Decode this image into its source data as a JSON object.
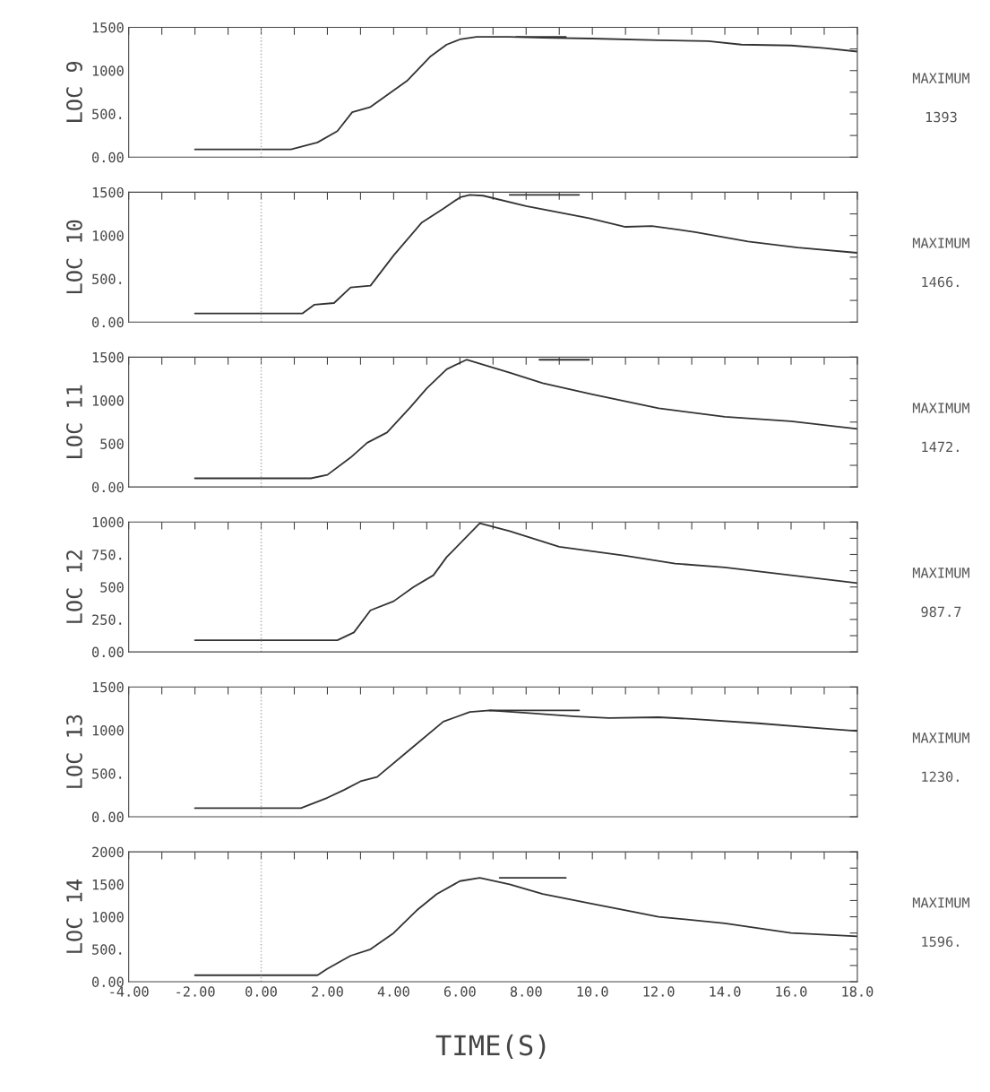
{
  "chart_data": [
    {
      "type": "line",
      "ylabel": "LOC 9",
      "xlim": [
        -4,
        18
      ],
      "ylim": [
        0,
        1500
      ],
      "tick_labels": "y",
      "grid": false,
      "line_style": "solid",
      "marker": "none",
      "xticks": [
        {
          "value": -4,
          "label": null
        },
        {
          "value": -3,
          "label": null
        },
        {
          "value": -2,
          "label": null
        },
        {
          "value": -1,
          "label": null
        },
        {
          "value": 0,
          "label": null
        },
        {
          "value": 1,
          "label": null
        },
        {
          "value": 2,
          "label": null
        },
        {
          "value": 3,
          "label": null
        },
        {
          "value": 4,
          "label": null
        },
        {
          "value": 5,
          "label": null
        },
        {
          "value": 6,
          "label": null
        },
        {
          "value": 7,
          "label": null
        },
        {
          "value": 8,
          "label": null
        },
        {
          "value": 9,
          "label": null
        },
        {
          "value": 10,
          "label": null
        },
        {
          "value": 11,
          "label": null
        },
        {
          "value": 12,
          "label": null
        },
        {
          "value": 13,
          "label": null
        },
        {
          "value": 14,
          "label": null
        },
        {
          "value": 15,
          "label": null
        },
        {
          "value": 16,
          "label": null
        },
        {
          "value": 17,
          "label": null
        },
        {
          "value": 18,
          "label": null
        }
      ],
      "yticks": [
        {
          "value": 0,
          "label": "0.00"
        },
        {
          "value": 250,
          "label": null
        },
        {
          "value": 500,
          "label": "500."
        },
        {
          "value": 750,
          "label": null
        },
        {
          "value": 1000,
          "label": "1000"
        },
        {
          "value": 1250,
          "label": null
        },
        {
          "value": 1500,
          "label": "1500"
        }
      ],
      "ref_lines": [
        {
          "axis": "x",
          "value": 0,
          "color": "#aaaaaa",
          "line_style": "dotted"
        }
      ],
      "series": [
        {
          "color": "#333333",
          "x": [
            -2,
            0.9,
            1.7,
            2.3,
            2.75,
            3.3,
            4.4,
            5.1,
            5.6,
            6.0,
            6.5,
            7.5,
            8.5,
            10,
            12,
            13.5,
            14.5,
            16,
            17,
            18
          ],
          "values": [
            90,
            90,
            170,
            300,
            520,
            580,
            880,
            1160,
            1300,
            1360,
            1390,
            1390,
            1380,
            1370,
            1350,
            1340,
            1300,
            1290,
            1260,
            1220
          ]
        },
        {
          "color": "#333333",
          "x": [
            7.7,
            9.2
          ],
          "values": [
            1390,
            1390
          ]
        }
      ],
      "annotations": [
        "MAXIMUM",
        "1393"
      ]
    },
    {
      "type": "line",
      "ylabel": "LOC 10",
      "xlim": [
        -4,
        18
      ],
      "ylim": [
        0,
        1500
      ],
      "tick_labels": "y",
      "grid": false,
      "line_style": "solid",
      "marker": "none",
      "xticks": [
        {
          "value": -4,
          "label": null
        },
        {
          "value": -3,
          "label": null
        },
        {
          "value": -2,
          "label": null
        },
        {
          "value": -1,
          "label": null
        },
        {
          "value": 0,
          "label": null
        },
        {
          "value": 1,
          "label": null
        },
        {
          "value": 2,
          "label": null
        },
        {
          "value": 3,
          "label": null
        },
        {
          "value": 4,
          "label": null
        },
        {
          "value": 5,
          "label": null
        },
        {
          "value": 6,
          "label": null
        },
        {
          "value": 7,
          "label": null
        },
        {
          "value": 8,
          "label": null
        },
        {
          "value": 9,
          "label": null
        },
        {
          "value": 10,
          "label": null
        },
        {
          "value": 11,
          "label": null
        },
        {
          "value": 12,
          "label": null
        },
        {
          "value": 13,
          "label": null
        },
        {
          "value": 14,
          "label": null
        },
        {
          "value": 15,
          "label": null
        },
        {
          "value": 16,
          "label": null
        },
        {
          "value": 17,
          "label": null
        },
        {
          "value": 18,
          "label": null
        }
      ],
      "yticks": [
        {
          "value": 0,
          "label": "0.00"
        },
        {
          "value": 250,
          "label": null
        },
        {
          "value": 500,
          "label": "500."
        },
        {
          "value": 750,
          "label": null
        },
        {
          "value": 1000,
          "label": "1000"
        },
        {
          "value": 1250,
          "label": null
        },
        {
          "value": 1500,
          "label": "1500"
        }
      ],
      "ref_lines": [
        {
          "axis": "x",
          "value": 0,
          "color": "#aaaaaa",
          "line_style": "dotted"
        }
      ],
      "series": [
        {
          "color": "#333333",
          "x": [
            -2,
            1.25,
            1.6,
            2.2,
            2.7,
            3.3,
            4.0,
            4.85,
            5.5,
            6.0,
            6.3,
            6.7,
            8.0,
            9.9,
            11,
            11.8,
            13.1,
            14.7,
            16.2,
            18
          ],
          "values": [
            100,
            100,
            200,
            220,
            400,
            420,
            770,
            1150,
            1310,
            1440,
            1470,
            1460,
            1340,
            1200,
            1100,
            1110,
            1040,
            930,
            860,
            800
          ]
        },
        {
          "color": "#333333",
          "x": [
            7.5,
            9.6
          ],
          "values": [
            1470,
            1470
          ]
        }
      ],
      "annotations": [
        "MAXIMUM",
        "1466."
      ]
    },
    {
      "type": "line",
      "ylabel": "LOC 11",
      "xlim": [
        -4,
        18
      ],
      "ylim": [
        0,
        1500
      ],
      "tick_labels": "y",
      "grid": false,
      "line_style": "solid",
      "marker": "none",
      "xticks": [
        {
          "value": -4,
          "label": null
        },
        {
          "value": -3,
          "label": null
        },
        {
          "value": -2,
          "label": null
        },
        {
          "value": -1,
          "label": null
        },
        {
          "value": 0,
          "label": null
        },
        {
          "value": 1,
          "label": null
        },
        {
          "value": 2,
          "label": null
        },
        {
          "value": 3,
          "label": null
        },
        {
          "value": 4,
          "label": null
        },
        {
          "value": 5,
          "label": null
        },
        {
          "value": 6,
          "label": null
        },
        {
          "value": 7,
          "label": null
        },
        {
          "value": 8,
          "label": null
        },
        {
          "value": 9,
          "label": null
        },
        {
          "value": 10,
          "label": null
        },
        {
          "value": 11,
          "label": null
        },
        {
          "value": 12,
          "label": null
        },
        {
          "value": 13,
          "label": null
        },
        {
          "value": 14,
          "label": null
        },
        {
          "value": 15,
          "label": null
        },
        {
          "value": 16,
          "label": null
        },
        {
          "value": 17,
          "label": null
        },
        {
          "value": 18,
          "label": null
        }
      ],
      "yticks": [
        {
          "value": 0,
          "label": "0.00"
        },
        {
          "value": 250,
          "label": null
        },
        {
          "value": 500,
          "label": "500"
        },
        {
          "value": 750,
          "label": null
        },
        {
          "value": 1000,
          "label": "1000"
        },
        {
          "value": 1250,
          "label": null
        },
        {
          "value": 1500,
          "label": "1500"
        }
      ],
      "ref_lines": [
        {
          "axis": "x",
          "value": 0,
          "color": "#aaaaaa",
          "line_style": "dotted"
        }
      ],
      "series": [
        {
          "color": "#333333",
          "x": [
            -2,
            1.5,
            2.0,
            2.7,
            3.2,
            3.8,
            4.5,
            5.0,
            5.6,
            6.2,
            7.5,
            8.5,
            10,
            12,
            14,
            16,
            18
          ],
          "values": [
            100,
            100,
            140,
            340,
            510,
            630,
            920,
            1140,
            1360,
            1470,
            1320,
            1200,
            1070,
            910,
            810,
            760,
            670
          ]
        },
        {
          "color": "#333333",
          "x": [
            8.4,
            9.9
          ],
          "values": [
            1470,
            1470
          ]
        }
      ],
      "annotations": [
        "MAXIMUM",
        "1472."
      ]
    },
    {
      "type": "line",
      "ylabel": "LOC 12",
      "xlim": [
        -4,
        18
      ],
      "ylim": [
        0,
        1000
      ],
      "tick_labels": "y",
      "grid": false,
      "line_style": "solid",
      "marker": "none",
      "xticks": [
        {
          "value": -4,
          "label": null
        },
        {
          "value": -3,
          "label": null
        },
        {
          "value": -2,
          "label": null
        },
        {
          "value": -1,
          "label": null
        },
        {
          "value": 0,
          "label": null
        },
        {
          "value": 1,
          "label": null
        },
        {
          "value": 2,
          "label": null
        },
        {
          "value": 3,
          "label": null
        },
        {
          "value": 4,
          "label": null
        },
        {
          "value": 5,
          "label": null
        },
        {
          "value": 6,
          "label": null
        },
        {
          "value": 7,
          "label": null
        },
        {
          "value": 8,
          "label": null
        },
        {
          "value": 9,
          "label": null
        },
        {
          "value": 10,
          "label": null
        },
        {
          "value": 11,
          "label": null
        },
        {
          "value": 12,
          "label": null
        },
        {
          "value": 13,
          "label": null
        },
        {
          "value": 14,
          "label": null
        },
        {
          "value": 15,
          "label": null
        },
        {
          "value": 16,
          "label": null
        },
        {
          "value": 17,
          "label": null
        },
        {
          "value": 18,
          "label": null
        }
      ],
      "yticks": [
        {
          "value": 0,
          "label": "0.00"
        },
        {
          "value": 125,
          "label": null
        },
        {
          "value": 250,
          "label": "250."
        },
        {
          "value": 375,
          "label": null
        },
        {
          "value": 500,
          "label": "500"
        },
        {
          "value": 625,
          "label": null
        },
        {
          "value": 750,
          "label": "750."
        },
        {
          "value": 875,
          "label": null
        },
        {
          "value": 1000,
          "label": "1000"
        }
      ],
      "ref_lines": [
        {
          "axis": "x",
          "value": 0,
          "color": "#aaaaaa",
          "line_style": "dotted"
        }
      ],
      "series": [
        {
          "color": "#333333",
          "x": [
            -2,
            2.3,
            2.8,
            3.3,
            4.0,
            4.6,
            5.2,
            5.6,
            6.6,
            7.5,
            9,
            11,
            12.5,
            14,
            16,
            18
          ],
          "values": [
            90,
            90,
            150,
            320,
            390,
            500,
            590,
            730,
            990,
            930,
            810,
            740,
            680,
            650,
            590,
            530
          ]
        }
      ],
      "annotations": [
        "MAXIMUM",
        "987.7"
      ]
    },
    {
      "type": "line",
      "ylabel": "LOC 13",
      "xlim": [
        -4,
        18
      ],
      "ylim": [
        0,
        1500
      ],
      "tick_labels": "y",
      "grid": false,
      "line_style": "solid",
      "marker": "none",
      "xticks": [
        {
          "value": -4,
          "label": null
        },
        {
          "value": -3,
          "label": null
        },
        {
          "value": -2,
          "label": null
        },
        {
          "value": -1,
          "label": null
        },
        {
          "value": 0,
          "label": null
        },
        {
          "value": 1,
          "label": null
        },
        {
          "value": 2,
          "label": null
        },
        {
          "value": 3,
          "label": null
        },
        {
          "value": 4,
          "label": null
        },
        {
          "value": 5,
          "label": null
        },
        {
          "value": 6,
          "label": null
        },
        {
          "value": 7,
          "label": null
        },
        {
          "value": 8,
          "label": null
        },
        {
          "value": 9,
          "label": null
        },
        {
          "value": 10,
          "label": null
        },
        {
          "value": 11,
          "label": null
        },
        {
          "value": 12,
          "label": null
        },
        {
          "value": 13,
          "label": null
        },
        {
          "value": 14,
          "label": null
        },
        {
          "value": 15,
          "label": null
        },
        {
          "value": 16,
          "label": null
        },
        {
          "value": 17,
          "label": null
        },
        {
          "value": 18,
          "label": null
        }
      ],
      "yticks": [
        {
          "value": 0,
          "label": "0.00"
        },
        {
          "value": 250,
          "label": null
        },
        {
          "value": 500,
          "label": "500."
        },
        {
          "value": 750,
          "label": null
        },
        {
          "value": 1000,
          "label": "1000"
        },
        {
          "value": 1250,
          "label": null
        },
        {
          "value": 1500,
          "label": "1500"
        }
      ],
      "ref_lines": [
        {
          "axis": "x",
          "value": 0,
          "color": "#aaaaaa",
          "line_style": "dotted"
        }
      ],
      "series": [
        {
          "color": "#333333",
          "x": [
            -2,
            1.2,
            2.0,
            2.5,
            3.0,
            3.5,
            4.5,
            5.5,
            6.3,
            6.9,
            8,
            9.5,
            10.5,
            12,
            13,
            15,
            17,
            18
          ],
          "values": [
            100,
            100,
            220,
            310,
            410,
            460,
            780,
            1100,
            1210,
            1230,
            1200,
            1160,
            1140,
            1150,
            1130,
            1080,
            1020,
            990
          ]
        },
        {
          "color": "#333333",
          "x": [
            6.9,
            9.6
          ],
          "values": [
            1230,
            1230
          ]
        }
      ],
      "annotations": [
        "MAXIMUM",
        "1230."
      ]
    },
    {
      "type": "line",
      "ylabel": "LOC 14",
      "xlabel": "TIME(S)",
      "xlim": [
        -4,
        18
      ],
      "ylim": [
        0,
        2000
      ],
      "grid": false,
      "line_style": "solid",
      "marker": "none",
      "xticks": [
        {
          "value": -4,
          "label": "-4.00"
        },
        {
          "value": -3,
          "label": null
        },
        {
          "value": -2,
          "label": "-2.00"
        },
        {
          "value": -1,
          "label": null
        },
        {
          "value": 0,
          "label": "0.00"
        },
        {
          "value": 1,
          "label": null
        },
        {
          "value": 2,
          "label": "2.00"
        },
        {
          "value": 3,
          "label": null
        },
        {
          "value": 4,
          "label": "4.00"
        },
        {
          "value": 5,
          "label": null
        },
        {
          "value": 6,
          "label": "6.00"
        },
        {
          "value": 7,
          "label": null
        },
        {
          "value": 8,
          "label": "8.00"
        },
        {
          "value": 9,
          "label": null
        },
        {
          "value": 10,
          "label": "10.0"
        },
        {
          "value": 11,
          "label": null
        },
        {
          "value": 12,
          "label": "12.0"
        },
        {
          "value": 13,
          "label": null
        },
        {
          "value": 14,
          "label": "14.0"
        },
        {
          "value": 15,
          "label": null
        },
        {
          "value": 16,
          "label": "16.0"
        },
        {
          "value": 17,
          "label": null
        },
        {
          "value": 18,
          "label": "18.0"
        }
      ],
      "yticks": [
        {
          "value": 0,
          "label": "0.00"
        },
        {
          "value": 250,
          "label": null
        },
        {
          "value": 500,
          "label": "500."
        },
        {
          "value": 750,
          "label": null
        },
        {
          "value": 1000,
          "label": "1000"
        },
        {
          "value": 1250,
          "label": null
        },
        {
          "value": 1500,
          "label": "1500"
        },
        {
          "value": 1750,
          "label": null
        },
        {
          "value": 2000,
          "label": "2000"
        }
      ],
      "ref_lines": [
        {
          "axis": "x",
          "value": 0,
          "color": "#aaaaaa",
          "line_style": "dotted"
        }
      ],
      "series": [
        {
          "color": "#333333",
          "x": [
            -2,
            1.7,
            2.0,
            2.7,
            3.3,
            4.0,
            4.7,
            5.3,
            6.0,
            6.6,
            7.5,
            8.5,
            10,
            12,
            14,
            16,
            18
          ],
          "values": [
            100,
            100,
            200,
            400,
            500,
            750,
            1100,
            1350,
            1550,
            1600,
            1500,
            1350,
            1200,
            1000,
            900,
            750,
            700
          ]
        },
        {
          "color": "#333333",
          "x": [
            7.2,
            9.2
          ],
          "values": [
            1600,
            1600
          ]
        }
      ],
      "annotations": [
        "MAXIMUM",
        "1596."
      ]
    }
  ]
}
